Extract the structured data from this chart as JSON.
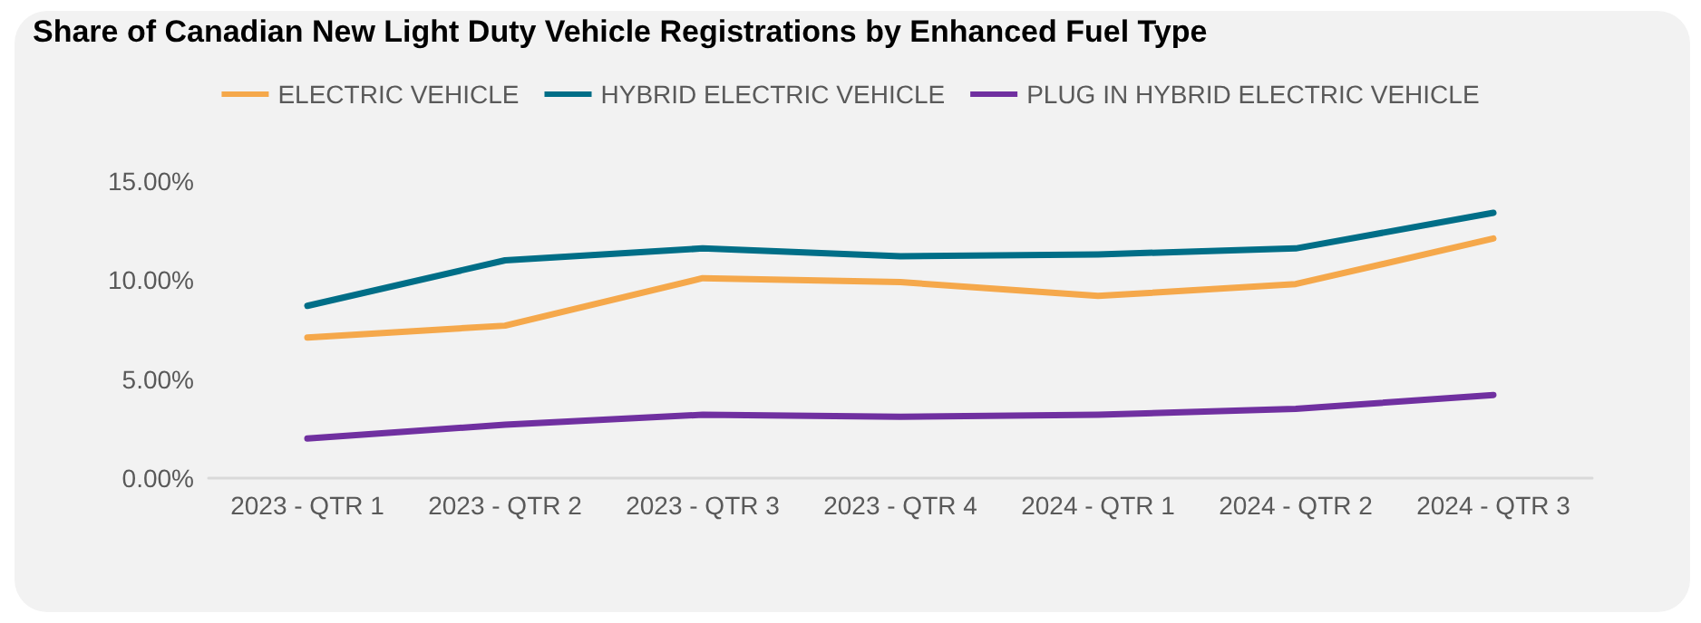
{
  "chart_data": {
    "type": "line",
    "title": "Share of Canadian New Light Duty Vehicle Registrations by Enhanced Fuel Type",
    "categories": [
      "2023 - QTR 1",
      "2023 - QTR 2",
      "2023 - QTR 3",
      "2023 - QTR 4",
      "2024 - QTR 1",
      "2024 - QTR 2",
      "2024 - QTR 3"
    ],
    "series": [
      {
        "name": "ELECTRIC VEHICLE",
        "color": "#f5a84b",
        "values": [
          7.1,
          7.7,
          10.1,
          9.9,
          9.2,
          9.8,
          12.1
        ]
      },
      {
        "name": "HYBRID ELECTRIC VEHICLE",
        "color": "#006e87",
        "values": [
          8.7,
          11.0,
          11.6,
          11.2,
          11.3,
          11.6,
          13.4
        ]
      },
      {
        "name": "PLUG IN HYBRID ELECTRIC VEHICLE",
        "color": "#7030a0",
        "values": [
          2.0,
          2.7,
          3.2,
          3.1,
          3.2,
          3.5,
          4.2
        ]
      }
    ],
    "ylim": [
      0,
      15
    ],
    "yticks": [
      {
        "value": 0,
        "label": "0.00%"
      },
      {
        "value": 5,
        "label": "5.00%"
      },
      {
        "value": 10,
        "label": "10.00%"
      },
      {
        "value": 15,
        "label": "15.00%"
      }
    ],
    "grid": false,
    "legend": "top",
    "marker": "none",
    "line_style": "solid"
  }
}
